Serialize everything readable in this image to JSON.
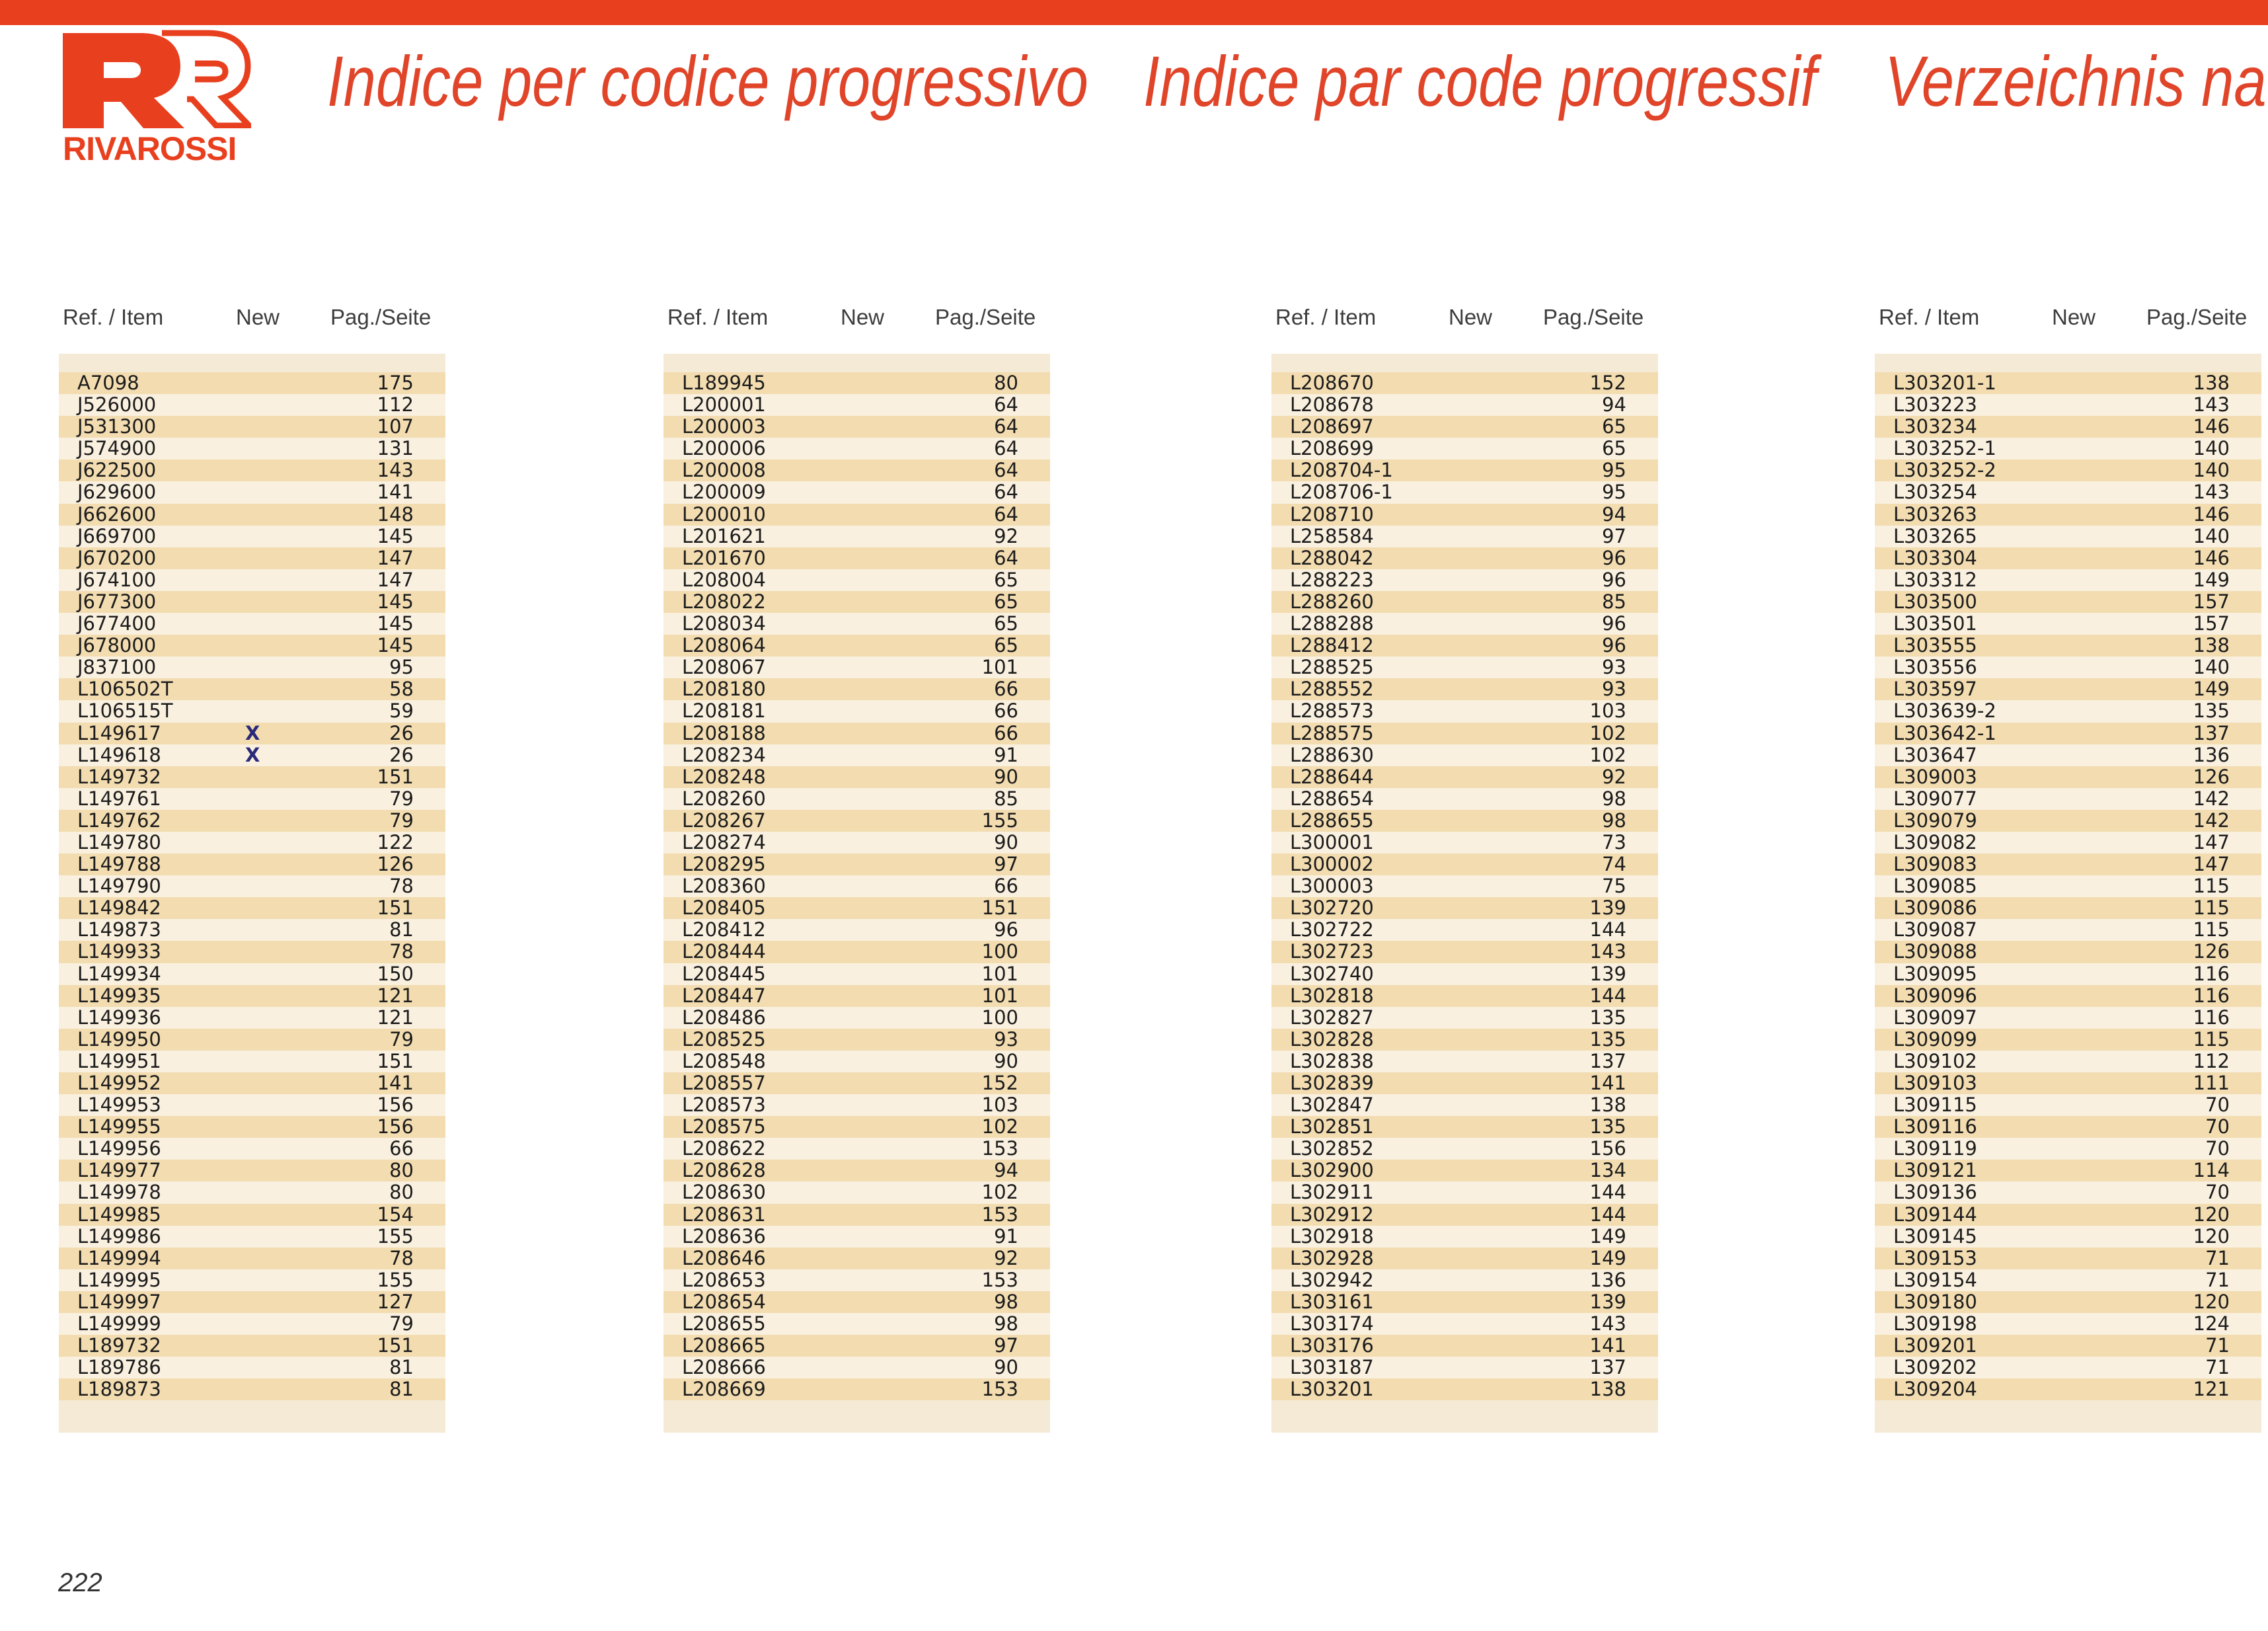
{
  "brand": {
    "name": "RIVAROSSI",
    "color": "#e8401f"
  },
  "header": {
    "title_it": "Indice per codice progressivo",
    "title_fr": "Indice par code progressif",
    "title_de": "Verzeichnis na"
  },
  "columns_header": {
    "ref": "Ref. / Item",
    "new": "New",
    "page": "Pag./Seite"
  },
  "page_number": "222",
  "columns": [
    {
      "rows": [
        {
          "code": "A7098",
          "new": "",
          "page": "175"
        },
        {
          "code": "J526000",
          "new": "",
          "page": "112"
        },
        {
          "code": "J531300",
          "new": "",
          "page": "107"
        },
        {
          "code": "J574900",
          "new": "",
          "page": "131"
        },
        {
          "code": "J622500",
          "new": "",
          "page": "143"
        },
        {
          "code": "J629600",
          "new": "",
          "page": "141"
        },
        {
          "code": "J662600",
          "new": "",
          "page": "148"
        },
        {
          "code": "J669700",
          "new": "",
          "page": "145"
        },
        {
          "code": "J670200",
          "new": "",
          "page": "147"
        },
        {
          "code": "J674100",
          "new": "",
          "page": "147"
        },
        {
          "code": "J677300",
          "new": "",
          "page": "145"
        },
        {
          "code": "J677400",
          "new": "",
          "page": "145"
        },
        {
          "code": "J678000",
          "new": "",
          "page": "145"
        },
        {
          "code": "J837100",
          "new": "",
          "page": "95"
        },
        {
          "code": "L106502T",
          "new": "",
          "page": "58"
        },
        {
          "code": "L106515T",
          "new": "",
          "page": "59"
        },
        {
          "code": "L149617",
          "new": "X",
          "page": "26"
        },
        {
          "code": "L149618",
          "new": "X",
          "page": "26"
        },
        {
          "code": "L149732",
          "new": "",
          "page": "151"
        },
        {
          "code": "L149761",
          "new": "",
          "page": "79"
        },
        {
          "code": "L149762",
          "new": "",
          "page": "79"
        },
        {
          "code": "L149780",
          "new": "",
          "page": "122"
        },
        {
          "code": "L149788",
          "new": "",
          "page": "126"
        },
        {
          "code": "L149790",
          "new": "",
          "page": "78"
        },
        {
          "code": "L149842",
          "new": "",
          "page": "151"
        },
        {
          "code": "L149873",
          "new": "",
          "page": "81"
        },
        {
          "code": "L149933",
          "new": "",
          "page": "78"
        },
        {
          "code": "L149934",
          "new": "",
          "page": "150"
        },
        {
          "code": "L149935",
          "new": "",
          "page": "121"
        },
        {
          "code": "L149936",
          "new": "",
          "page": "121"
        },
        {
          "code": "L149950",
          "new": "",
          "page": "79"
        },
        {
          "code": "L149951",
          "new": "",
          "page": "151"
        },
        {
          "code": "L149952",
          "new": "",
          "page": "141"
        },
        {
          "code": "L149953",
          "new": "",
          "page": "156"
        },
        {
          "code": "L149955",
          "new": "",
          "page": "156"
        },
        {
          "code": "L149956",
          "new": "",
          "page": "66"
        },
        {
          "code": "L149977",
          "new": "",
          "page": "80"
        },
        {
          "code": "L149978",
          "new": "",
          "page": "80"
        },
        {
          "code": "L149985",
          "new": "",
          "page": "154"
        },
        {
          "code": "L149986",
          "new": "",
          "page": "155"
        },
        {
          "code": "L149994",
          "new": "",
          "page": "78"
        },
        {
          "code": "L149995",
          "new": "",
          "page": "155"
        },
        {
          "code": "L149997",
          "new": "",
          "page": "127"
        },
        {
          "code": "L149999",
          "new": "",
          "page": "79"
        },
        {
          "code": "L189732",
          "new": "",
          "page": "151"
        },
        {
          "code": "L189786",
          "new": "",
          "page": "81"
        },
        {
          "code": "L189873",
          "new": "",
          "page": "81"
        }
      ]
    },
    {
      "rows": [
        {
          "code": "L189945",
          "new": "",
          "page": "80"
        },
        {
          "code": "L200001",
          "new": "",
          "page": "64"
        },
        {
          "code": "L200003",
          "new": "",
          "page": "64"
        },
        {
          "code": "L200006",
          "new": "",
          "page": "64"
        },
        {
          "code": "L200008",
          "new": "",
          "page": "64"
        },
        {
          "code": "L200009",
          "new": "",
          "page": "64"
        },
        {
          "code": "L200010",
          "new": "",
          "page": "64"
        },
        {
          "code": "L201621",
          "new": "",
          "page": "92"
        },
        {
          "code": "L201670",
          "new": "",
          "page": "64"
        },
        {
          "code": "L208004",
          "new": "",
          "page": "65"
        },
        {
          "code": "L208022",
          "new": "",
          "page": "65"
        },
        {
          "code": "L208034",
          "new": "",
          "page": "65"
        },
        {
          "code": "L208064",
          "new": "",
          "page": "65"
        },
        {
          "code": "L208067",
          "new": "",
          "page": "101"
        },
        {
          "code": "L208180",
          "new": "",
          "page": "66"
        },
        {
          "code": "L208181",
          "new": "",
          "page": "66"
        },
        {
          "code": "L208188",
          "new": "",
          "page": "66"
        },
        {
          "code": "L208234",
          "new": "",
          "page": "91"
        },
        {
          "code": "L208248",
          "new": "",
          "page": "90"
        },
        {
          "code": "L208260",
          "new": "",
          "page": "85"
        },
        {
          "code": "L208267",
          "new": "",
          "page": "155"
        },
        {
          "code": "L208274",
          "new": "",
          "page": "90"
        },
        {
          "code": "L208295",
          "new": "",
          "page": "97"
        },
        {
          "code": "L208360",
          "new": "",
          "page": "66"
        },
        {
          "code": "L208405",
          "new": "",
          "page": "151"
        },
        {
          "code": "L208412",
          "new": "",
          "page": "96"
        },
        {
          "code": "L208444",
          "new": "",
          "page": "100"
        },
        {
          "code": "L208445",
          "new": "",
          "page": "101"
        },
        {
          "code": "L208447",
          "new": "",
          "page": "101"
        },
        {
          "code": "L208486",
          "new": "",
          "page": "100"
        },
        {
          "code": "L208525",
          "new": "",
          "page": "93"
        },
        {
          "code": "L208548",
          "new": "",
          "page": "90"
        },
        {
          "code": "L208557",
          "new": "",
          "page": "152"
        },
        {
          "code": "L208573",
          "new": "",
          "page": "103"
        },
        {
          "code": "L208575",
          "new": "",
          "page": "102"
        },
        {
          "code": "L208622",
          "new": "",
          "page": "153"
        },
        {
          "code": "L208628",
          "new": "",
          "page": "94"
        },
        {
          "code": "L208630",
          "new": "",
          "page": "102"
        },
        {
          "code": "L208631",
          "new": "",
          "page": "153"
        },
        {
          "code": "L208636",
          "new": "",
          "page": "91"
        },
        {
          "code": "L208646",
          "new": "",
          "page": "92"
        },
        {
          "code": "L208653",
          "new": "",
          "page": "153"
        },
        {
          "code": "L208654",
          "new": "",
          "page": "98"
        },
        {
          "code": "L208655",
          "new": "",
          "page": "98"
        },
        {
          "code": "L208665",
          "new": "",
          "page": "97"
        },
        {
          "code": "L208666",
          "new": "",
          "page": "90"
        },
        {
          "code": "L208669",
          "new": "",
          "page": "153"
        }
      ]
    },
    {
      "rows": [
        {
          "code": "L208670",
          "new": "",
          "page": "152"
        },
        {
          "code": "L208678",
          "new": "",
          "page": "94"
        },
        {
          "code": "L208697",
          "new": "",
          "page": "65"
        },
        {
          "code": "L208699",
          "new": "",
          "page": "65"
        },
        {
          "code": "L208704-1",
          "new": "",
          "page": "95"
        },
        {
          "code": "L208706-1",
          "new": "",
          "page": "95"
        },
        {
          "code": "L208710",
          "new": "",
          "page": "94"
        },
        {
          "code": "L258584",
          "new": "",
          "page": "97"
        },
        {
          "code": "L288042",
          "new": "",
          "page": "96"
        },
        {
          "code": "L288223",
          "new": "",
          "page": "96"
        },
        {
          "code": "L288260",
          "new": "",
          "page": "85"
        },
        {
          "code": "L288288",
          "new": "",
          "page": "96"
        },
        {
          "code": "L288412",
          "new": "",
          "page": "96"
        },
        {
          "code": "L288525",
          "new": "",
          "page": "93"
        },
        {
          "code": "L288552",
          "new": "",
          "page": "93"
        },
        {
          "code": "L288573",
          "new": "",
          "page": "103"
        },
        {
          "code": "L288575",
          "new": "",
          "page": "102"
        },
        {
          "code": "L288630",
          "new": "",
          "page": "102"
        },
        {
          "code": "L288644",
          "new": "",
          "page": "92"
        },
        {
          "code": "L288654",
          "new": "",
          "page": "98"
        },
        {
          "code": "L288655",
          "new": "",
          "page": "98"
        },
        {
          "code": "L300001",
          "new": "",
          "page": "73"
        },
        {
          "code": "L300002",
          "new": "",
          "page": "74"
        },
        {
          "code": "L300003",
          "new": "",
          "page": "75"
        },
        {
          "code": "L302720",
          "new": "",
          "page": "139"
        },
        {
          "code": "L302722",
          "new": "",
          "page": "144"
        },
        {
          "code": "L302723",
          "new": "",
          "page": "143"
        },
        {
          "code": "L302740",
          "new": "",
          "page": "139"
        },
        {
          "code": "L302818",
          "new": "",
          "page": "144"
        },
        {
          "code": "L302827",
          "new": "",
          "page": "135"
        },
        {
          "code": "L302828",
          "new": "",
          "page": "135"
        },
        {
          "code": "L302838",
          "new": "",
          "page": "137"
        },
        {
          "code": "L302839",
          "new": "",
          "page": "141"
        },
        {
          "code": "L302847",
          "new": "",
          "page": "138"
        },
        {
          "code": "L302851",
          "new": "",
          "page": "135"
        },
        {
          "code": "L302852",
          "new": "",
          "page": "156"
        },
        {
          "code": "L302900",
          "new": "",
          "page": "134"
        },
        {
          "code": "L302911",
          "new": "",
          "page": "144"
        },
        {
          "code": "L302912",
          "new": "",
          "page": "144"
        },
        {
          "code": "L302918",
          "new": "",
          "page": "149"
        },
        {
          "code": "L302928",
          "new": "",
          "page": "149"
        },
        {
          "code": "L302942",
          "new": "",
          "page": "136"
        },
        {
          "code": "L303161",
          "new": "",
          "page": "139"
        },
        {
          "code": "L303174",
          "new": "",
          "page": "143"
        },
        {
          "code": "L303176",
          "new": "",
          "page": "141"
        },
        {
          "code": "L303187",
          "new": "",
          "page": "137"
        },
        {
          "code": "L303201",
          "new": "",
          "page": "138"
        }
      ]
    },
    {
      "rows": [
        {
          "code": "L303201-1",
          "new": "",
          "page": "138"
        },
        {
          "code": "L303223",
          "new": "",
          "page": "143"
        },
        {
          "code": "L303234",
          "new": "",
          "page": "146"
        },
        {
          "code": "L303252-1",
          "new": "",
          "page": "140"
        },
        {
          "code": "L303252-2",
          "new": "",
          "page": "140"
        },
        {
          "code": "L303254",
          "new": "",
          "page": "143"
        },
        {
          "code": "L303263",
          "new": "",
          "page": "146"
        },
        {
          "code": "L303265",
          "new": "",
          "page": "140"
        },
        {
          "code": "L303304",
          "new": "",
          "page": "146"
        },
        {
          "code": "L303312",
          "new": "",
          "page": "149"
        },
        {
          "code": "L303500",
          "new": "",
          "page": "157"
        },
        {
          "code": "L303501",
          "new": "",
          "page": "157"
        },
        {
          "code": "L303555",
          "new": "",
          "page": "138"
        },
        {
          "code": "L303556",
          "new": "",
          "page": "140"
        },
        {
          "code": "L303597",
          "new": "",
          "page": "149"
        },
        {
          "code": "L303639-2",
          "new": "",
          "page": "135"
        },
        {
          "code": "L303642-1",
          "new": "",
          "page": "137"
        },
        {
          "code": "L303647",
          "new": "",
          "page": "136"
        },
        {
          "code": "L309003",
          "new": "",
          "page": "126"
        },
        {
          "code": "L309077",
          "new": "",
          "page": "142"
        },
        {
          "code": "L309079",
          "new": "",
          "page": "142"
        },
        {
          "code": "L309082",
          "new": "",
          "page": "147"
        },
        {
          "code": "L309083",
          "new": "",
          "page": "147"
        },
        {
          "code": "L309085",
          "new": "",
          "page": "115"
        },
        {
          "code": "L309086",
          "new": "",
          "page": "115"
        },
        {
          "code": "L309087",
          "new": "",
          "page": "115"
        },
        {
          "code": "L309088",
          "new": "",
          "page": "126"
        },
        {
          "code": "L309095",
          "new": "",
          "page": "116"
        },
        {
          "code": "L309096",
          "new": "",
          "page": "116"
        },
        {
          "code": "L309097",
          "new": "",
          "page": "116"
        },
        {
          "code": "L309099",
          "new": "",
          "page": "115"
        },
        {
          "code": "L309102",
          "new": "",
          "page": "112"
        },
        {
          "code": "L309103",
          "new": "",
          "page": "111"
        },
        {
          "code": "L309115",
          "new": "",
          "page": "70"
        },
        {
          "code": "L309116",
          "new": "",
          "page": "70"
        },
        {
          "code": "L309119",
          "new": "",
          "page": "70"
        },
        {
          "code": "L309121",
          "new": "",
          "page": "114"
        },
        {
          "code": "L309136",
          "new": "",
          "page": "70"
        },
        {
          "code": "L309144",
          "new": "",
          "page": "120"
        },
        {
          "code": "L309145",
          "new": "",
          "page": "120"
        },
        {
          "code": "L309153",
          "new": "",
          "page": "71"
        },
        {
          "code": "L309154",
          "new": "",
          "page": "71"
        },
        {
          "code": "L309180",
          "new": "",
          "page": "120"
        },
        {
          "code": "L309198",
          "new": "",
          "page": "124"
        },
        {
          "code": "L309201",
          "new": "",
          "page": "71"
        },
        {
          "code": "L309202",
          "new": "",
          "page": "71"
        },
        {
          "code": "L309204",
          "new": "",
          "page": "121"
        }
      ]
    }
  ]
}
